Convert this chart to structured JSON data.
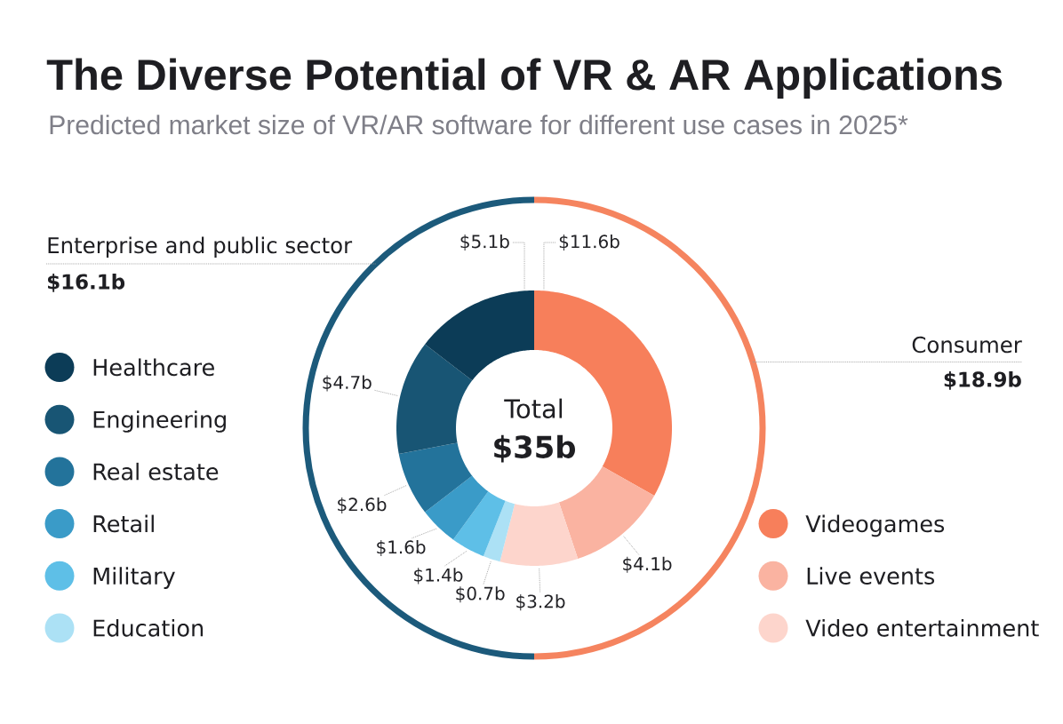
{
  "chart_data": {
    "type": "donut",
    "title": "The Diverse Potential of VR & AR Applications",
    "subtitle": "Predicted market size of VR/AR software for different use cases in 2025*",
    "categories": [
      "Videogames",
      "Live events",
      "Video entertainment",
      "Education",
      "Military",
      "Retail",
      "Real estate",
      "Engineering",
      "Healthcare"
    ],
    "values": [
      11.6,
      4.1,
      3.2,
      0.7,
      1.4,
      1.6,
      2.6,
      4.7,
      5.1
    ],
    "colors": [
      "#f77f5b",
      "#fab3a1",
      "#fdd5cc",
      "#ace1f5",
      "#5ebfe7",
      "#3a9bc8",
      "#23739b",
      "#185574",
      "#0c3c57"
    ],
    "value_labels": [
      "$11.6b",
      "$4.1b",
      "$3.2b",
      "$0.7b",
      "$1.4b",
      "$1.6b",
      "$2.6b",
      "$4.7b",
      "$5.1b"
    ],
    "legend": "bottom",
    "annotations": [
      "Enterprise and public sector",
      "$16.1b",
      "Consumer",
      "$18.9b",
      "Total",
      "$35b"
    ]
  }
}
